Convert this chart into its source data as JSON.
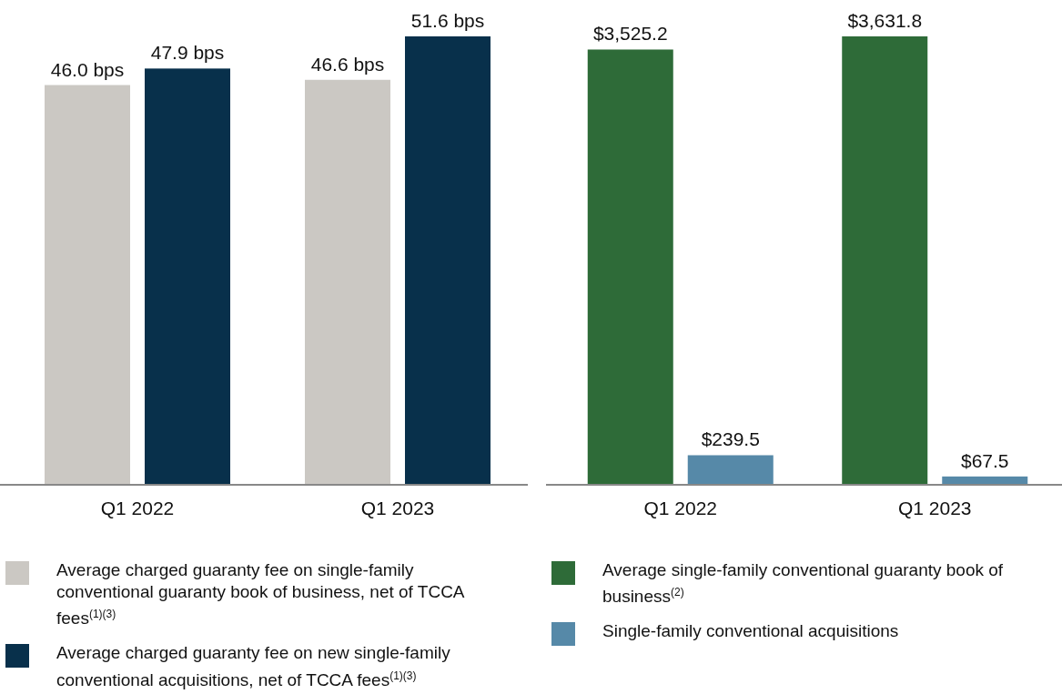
{
  "chart_data": [
    {
      "type": "bar",
      "categories": [
        "Q1 2022",
        "Q1 2023"
      ],
      "tick_labels": "x",
      "legend": "bottom",
      "series": [
        {
          "name": "Average charged guaranty fee on single-family conventional guaranty book of business, net of TCCA fees$^{(1)(3)}$",
          "color": "#cbc8c3",
          "values": [
            46.0,
            46.6
          ],
          "value_labels": [
            "46.0 bps",
            "46.6 bps"
          ]
        },
        {
          "name": "Average charged guaranty fee on new single-family conventional acquisitions, net of TCCA fees$^{(1)(3)}$",
          "color": "#08304b",
          "values": [
            47.9,
            51.6
          ],
          "value_labels": [
            "47.9 bps",
            "51.6 bps"
          ]
        }
      ]
    },
    {
      "type": "bar",
      "categories": [
        "Q1 2022",
        "Q1 2023"
      ],
      "tick_labels": "x",
      "legend": "bottom",
      "series": [
        {
          "name": "Average single-family conventional guaranty book of business$^{(2)}$",
          "color": "#2e6b38",
          "values": [
            3525.2,
            3631.8
          ],
          "value_labels": [
            "$3,525.2",
            "$3,631.8"
          ]
        },
        {
          "name": "Single-family conventional acquisitions",
          "color": "#5689a8",
          "values": [
            239.5,
            67.5
          ],
          "value_labels": [
            "$239.5",
            "$67.5"
          ]
        }
      ]
    }
  ]
}
